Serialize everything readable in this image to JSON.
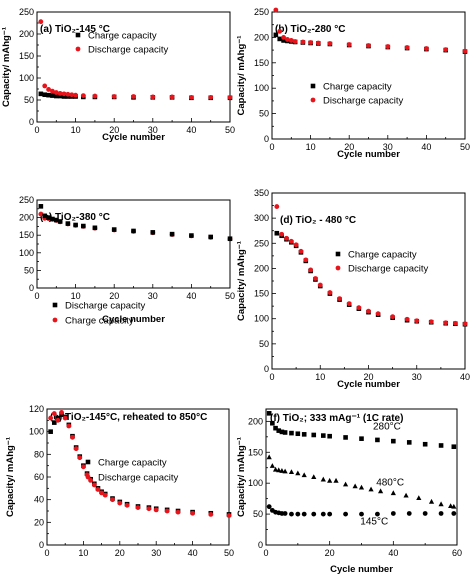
{
  "chart_data": [
    {
      "type": "scatter",
      "panel_label": "(a)",
      "title": "TiO₂-145 °C",
      "xlabel": "Cycle number",
      "ylabel": "Capacity/ mAhg⁻¹",
      "xlim": [
        0,
        50
      ],
      "ylim": [
        0,
        250
      ],
      "xticks": [
        0,
        10,
        20,
        30,
        40,
        50
      ],
      "yticks": [
        0,
        50,
        100,
        150,
        200,
        250
      ],
      "legend_placement": "upper-center",
      "legend_order": [
        0,
        1
      ],
      "series": [
        {
          "name": "Charge capacity",
          "color": "#000000",
          "marker": "square",
          "x": [
            1,
            2,
            3,
            4,
            5,
            6,
            7,
            8,
            9,
            10,
            12,
            15,
            20,
            25,
            30,
            35,
            40,
            45,
            50
          ],
          "y": [
            64,
            62,
            61,
            60,
            59,
            59,
            58,
            58,
            58,
            58,
            57,
            57,
            57,
            56,
            56,
            56,
            55,
            55,
            55
          ]
        },
        {
          "name": "Discharge capacity",
          "color": "#e8141c",
          "marker": "circle",
          "x": [
            1,
            2,
            3,
            4,
            5,
            6,
            7,
            8,
            9,
            10,
            12,
            15,
            20,
            25,
            30,
            35,
            40,
            45,
            50
          ],
          "y": [
            228,
            82,
            74,
            70,
            67,
            65,
            64,
            63,
            62,
            61,
            60,
            59,
            58,
            58,
            57,
            57,
            56,
            56,
            56
          ]
        }
      ]
    },
    {
      "type": "scatter",
      "panel_label": "(b)",
      "title": "TiO₂-280 °C",
      "xlabel": "Cycle number",
      "ylabel": "Capacity/ mAhg⁻¹",
      "xlim": [
        0,
        50
      ],
      "ylim": [
        0,
        250
      ],
      "xticks": [
        0,
        10,
        20,
        30,
        40,
        50
      ],
      "yticks": [
        0,
        50,
        100,
        150,
        200,
        250
      ],
      "legend_placement": "lower-center",
      "legend_order": [
        0,
        1
      ],
      "series": [
        {
          "name": "Charge capacity",
          "color": "#000000",
          "marker": "square",
          "x": [
            1,
            2,
            3,
            4,
            5,
            6,
            8,
            10,
            12,
            15,
            20,
            25,
            30,
            35,
            40,
            45,
            50
          ],
          "y": [
            205,
            197,
            194,
            193,
            192,
            191,
            190,
            189,
            188,
            187,
            185,
            183,
            181,
            179,
            177,
            175,
            172
          ]
        },
        {
          "name": "Discharge capacity",
          "color": "#e8141c",
          "marker": "circle",
          "x": [
            1,
            2,
            3,
            4,
            5,
            6,
            8,
            10,
            12,
            15,
            20,
            25,
            30,
            35,
            40,
            45,
            50
          ],
          "y": [
            254,
            212,
            200,
            196,
            194,
            192,
            191,
            190,
            189,
            188,
            186,
            184,
            182,
            180,
            178,
            176,
            173
          ]
        }
      ]
    },
    {
      "type": "scatter",
      "panel_label": "(c)",
      "title": "TiO₂-380 °C",
      "xlabel": "Cycle number",
      "ylabel": "",
      "xlim": [
        0,
        50
      ],
      "ylim": [
        0,
        250
      ],
      "xticks": [
        0,
        10,
        20,
        30,
        40,
        50
      ],
      "yticks": [
        0,
        50,
        100,
        150,
        200,
        250
      ],
      "legend_placement": "lower-left",
      "legend_order": [
        1,
        0
      ],
      "series": [
        {
          "name": "Charge capacity",
          "color": "#e8141c",
          "marker": "circle",
          "x": [
            1,
            2,
            3,
            4,
            5,
            6,
            8,
            10,
            12,
            15,
            20,
            25,
            30,
            35,
            40,
            45,
            50
          ],
          "y": [
            210,
            198,
            197,
            195,
            192,
            188,
            182,
            178,
            175,
            170,
            165,
            161,
            157,
            152,
            148,
            144,
            139
          ]
        },
        {
          "name": "Discharge capacity",
          "color": "#000000",
          "marker": "square",
          "x": [
            1,
            2,
            3,
            4,
            5,
            6,
            8,
            10,
            12,
            15,
            20,
            25,
            30,
            35,
            40,
            45,
            50
          ],
          "y": [
            232,
            205,
            200,
            196,
            193,
            189,
            183,
            179,
            176,
            171,
            166,
            162,
            158,
            153,
            149,
            145,
            140
          ]
        }
      ]
    },
    {
      "type": "scatter",
      "panel_label": "(d)",
      "title": "TiO₂ - 480 °C",
      "xlabel": "Cycle number",
      "ylabel": "Capacity/ mAhg⁻¹",
      "xlim": [
        0,
        40
      ],
      "ylim": [
        0,
        350
      ],
      "xticks": [
        0,
        10,
        20,
        30,
        40
      ],
      "yticks": [
        0,
        50,
        100,
        150,
        200,
        250,
        300,
        350
      ],
      "legend_placement": "center-right",
      "legend_order": [
        0,
        1
      ],
      "series": [
        {
          "name": "Charge capacity",
          "color": "#000000",
          "marker": "square",
          "x": [
            1,
            2,
            3,
            4,
            5,
            6,
            7,
            8,
            9,
            10,
            12,
            14,
            16,
            18,
            20,
            22,
            25,
            28,
            30,
            33,
            36,
            38,
            40
          ],
          "y": [
            270,
            265,
            258,
            252,
            245,
            232,
            215,
            195,
            178,
            165,
            150,
            138,
            128,
            120,
            113,
            108,
            102,
            97,
            95,
            93,
            91,
            90,
            89
          ]
        },
        {
          "name": "Discharge capacity",
          "color": "#e8141c",
          "marker": "circle",
          "x": [
            1,
            2,
            3,
            4,
            5,
            6,
            7,
            8,
            9,
            10,
            12,
            14,
            16,
            18,
            20,
            22,
            25,
            28,
            30,
            33,
            36,
            38,
            40
          ],
          "y": [
            323,
            268,
            260,
            254,
            247,
            234,
            217,
            197,
            180,
            167,
            152,
            140,
            130,
            122,
            115,
            110,
            104,
            99,
            96,
            94,
            92,
            91,
            90
          ]
        }
      ]
    },
    {
      "type": "scatter",
      "panel_label": "(e)",
      "title": "TiO₂-145°C, reheated to 850°C",
      "xlabel": "",
      "ylabel": "Capacity/ mAhg⁻¹",
      "xlim": [
        0,
        50
      ],
      "ylim": [
        0,
        120
      ],
      "xticks": [
        0,
        10,
        20,
        30,
        40,
        50
      ],
      "yticks": [
        0,
        20,
        40,
        60,
        80,
        100,
        120
      ],
      "legend_placement": "upper-right",
      "legend_order": [
        0,
        1
      ],
      "series": [
        {
          "name": "Charge capacity",
          "color": "#000000",
          "marker": "square",
          "x": [
            1,
            2,
            3,
            4,
            5,
            6,
            7,
            8,
            9,
            10,
            11,
            12,
            13,
            14,
            15,
            16,
            18,
            20,
            22,
            25,
            28,
            30,
            33,
            36,
            40,
            45,
            50
          ],
          "y": [
            100,
            108,
            112,
            115,
            113,
            106,
            96,
            86,
            78,
            70,
            63,
            58,
            54,
            50,
            47,
            45,
            41,
            38,
            36,
            34,
            33,
            32,
            31,
            30,
            29,
            28,
            27
          ]
        },
        {
          "name": "Discharge capacity",
          "color": "#e8141c",
          "marker": "circle",
          "x": [
            1,
            2,
            3,
            4,
            5,
            6,
            7,
            8,
            9,
            10,
            11,
            12,
            13,
            14,
            15,
            16,
            18,
            20,
            22,
            25,
            28,
            30,
            33,
            36,
            40,
            45,
            50
          ],
          "y": [
            112,
            116,
            110,
            117,
            112,
            105,
            95,
            85,
            77,
            69,
            62,
            57,
            53,
            49,
            46,
            44,
            40,
            37,
            35,
            33,
            32,
            31,
            30,
            29,
            28,
            27,
            26
          ]
        }
      ]
    },
    {
      "type": "scatter",
      "panel_label": "(f)",
      "title": "TiO₂; 333 mAg⁻¹ (1C rate)",
      "xlabel": "Cycle number",
      "ylabel": "Capacity/ mAhg⁻¹",
      "xlim": [
        0,
        60
      ],
      "ylim": [
        0,
        220
      ],
      "xticks": [
        0,
        20,
        40,
        60
      ],
      "yticks": [
        0,
        50,
        100,
        150,
        200
      ],
      "legend_placement": "",
      "legend_order": [],
      "series": [
        {
          "name": "280°C",
          "color": "#000000",
          "marker": "square",
          "x": [
            1,
            2,
            3,
            4,
            5,
            6,
            8,
            10,
            12,
            15,
            18,
            20,
            25,
            30,
            35,
            40,
            45,
            50,
            55,
            59
          ],
          "y": [
            213,
            197,
            189,
            185,
            183,
            182,
            181,
            180,
            179,
            178,
            177,
            176,
            174,
            172,
            170,
            168,
            166,
            163,
            161,
            159
          ]
        },
        {
          "name": "480°C",
          "color": "#000000",
          "marker": "triangle",
          "x": [
            1,
            2,
            3,
            4,
            5,
            6,
            8,
            10,
            12,
            15,
            18,
            20,
            22,
            25,
            28,
            30,
            33,
            36,
            40,
            44,
            48,
            52,
            55,
            58,
            59
          ],
          "y": [
            142,
            128,
            122,
            121,
            120,
            119,
            118,
            116,
            113,
            110,
            106,
            104,
            104,
            98,
            95,
            93,
            90,
            87,
            84,
            80,
            76,
            70,
            66,
            63,
            62
          ]
        },
        {
          "name": "145°C",
          "color": "#000000",
          "marker": "circle",
          "x": [
            1,
            2,
            3,
            4,
            5,
            6,
            8,
            10,
            12,
            15,
            18,
            20,
            25,
            30,
            35,
            40,
            45,
            50,
            55,
            59
          ],
          "y": [
            62,
            56,
            53,
            52,
            51,
            51,
            50,
            50,
            50,
            50,
            50,
            50,
            50,
            50,
            50,
            51,
            51,
            51,
            51,
            51
          ]
        }
      ],
      "annotations": [
        {
          "text": "280°C",
          "x": 38,
          "y": 187
        },
        {
          "text": "480°C",
          "x": 39,
          "y": 96
        },
        {
          "text": "145°C",
          "x": 34,
          "y": 33
        }
      ]
    }
  ]
}
